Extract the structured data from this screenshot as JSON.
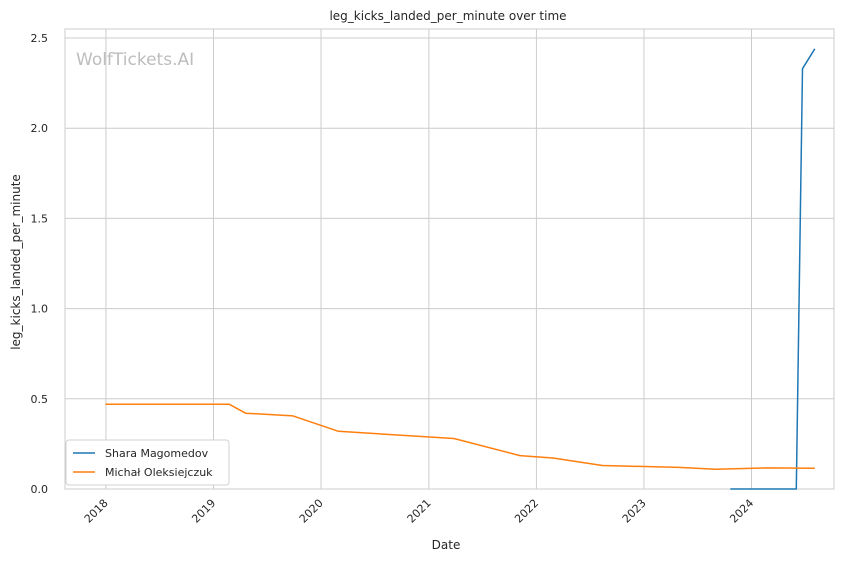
{
  "chart_data": {
    "type": "line",
    "title": "leg_kicks_landed_per_minute over time",
    "xlabel": "Date",
    "ylabel": "leg_kicks_landed_per_minute",
    "watermark": "WolfTickets.AI",
    "x_ticks": [
      "2018",
      "2019",
      "2020",
      "2021",
      "2022",
      "2023",
      "2024"
    ],
    "y_ticks": [
      "0.0",
      "0.5",
      "1.0",
      "1.5",
      "2.0",
      "2.5"
    ],
    "xlim": [
      "2017-08-15",
      "2024-10-07"
    ],
    "ylim": [
      -0.0,
      2.55
    ],
    "grid": true,
    "legend_position": "lower-left",
    "colors": {
      "Shara Magomedov": "#1f77b4",
      "Michał Oleksiejczuk": "#ff7f0e"
    },
    "series": [
      {
        "name": "Shara Magomedov",
        "color": "#1f77b4",
        "points": [
          [
            "2023-10-21",
            0.0
          ],
          [
            "2024-06-01",
            0.0
          ],
          [
            "2024-06-22",
            2.33
          ],
          [
            "2024-08-03",
            2.44
          ]
        ]
      },
      {
        "name": "Michał Oleksiejczuk",
        "color": "#ff7f0e",
        "points": [
          [
            "2017-12-30",
            0.47
          ],
          [
            "2019-02-23",
            0.47
          ],
          [
            "2019-04-20",
            0.42
          ],
          [
            "2019-09-28",
            0.405
          ],
          [
            "2020-02-29",
            0.32
          ],
          [
            "2021-03-27",
            0.28
          ],
          [
            "2021-11-06",
            0.185
          ],
          [
            "2022-02-26",
            0.172
          ],
          [
            "2022-08-13",
            0.13
          ],
          [
            "2023-04-29",
            0.12
          ],
          [
            "2023-09-02",
            0.11
          ],
          [
            "2024-02-24",
            0.117
          ],
          [
            "2024-08-03",
            0.115
          ]
        ]
      }
    ]
  }
}
